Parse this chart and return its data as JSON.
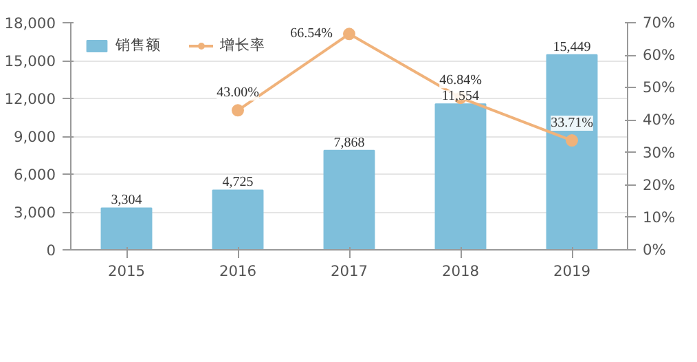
{
  "chart_data": {
    "type": "bar",
    "categories": [
      "2015",
      "2016",
      "2017",
      "2018",
      "2019"
    ],
    "series": [
      {
        "name": "销售额",
        "color": "#7fbfdb",
        "values": [
          3304,
          4725,
          7868,
          11554,
          15449
        ],
        "value_labels": [
          "3,304",
          "4,725",
          "7,868",
          "11,554",
          "15,449"
        ]
      },
      {
        "name": "增长率",
        "type": "line",
        "axis": "y2",
        "color": "#f0b27a",
        "marker": "circle",
        "values": [
          null,
          43.0,
          66.54,
          46.84,
          33.71
        ],
        "value_labels": [
          null,
          "43.00%",
          "66.54%",
          "46.84%",
          "33.71%"
        ]
      }
    ],
    "ylim": [
      0,
      18000
    ],
    "yticks": [
      0,
      {
        "value": 3000,
        "label": "3,000"
      },
      {
        "value": 6000,
        "label": "6,000"
      },
      {
        "value": 9000,
        "label": "9,000"
      },
      {
        "value": 12000,
        "label": "12,000"
      },
      {
        "value": 15000,
        "label": "15,000"
      },
      {
        "value": 18000,
        "label": "18,000"
      }
    ],
    "y2lim": [
      0,
      70
    ],
    "y2ticks": [
      {
        "value": 0,
        "label": "0%"
      },
      {
        "value": 10,
        "label": "10%"
      },
      {
        "value": 20,
        "label": "20%"
      },
      {
        "value": 30,
        "label": "30%"
      },
      {
        "value": 40,
        "label": "40%"
      },
      {
        "value": 50,
        "label": "50%"
      },
      {
        "value": 60,
        "label": "60%"
      },
      {
        "value": 70,
        "label": "70%"
      }
    ],
    "grid": "y",
    "legend": "top left"
  }
}
